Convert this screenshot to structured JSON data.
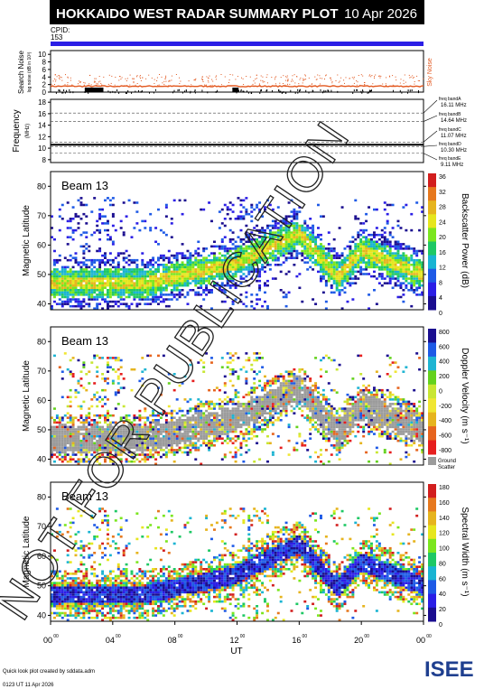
{
  "header": {
    "title": "HOKKAIDO WEST RADAR SUMMARY PLOT",
    "date": "10 Apr 2026"
  },
  "cpid": {
    "label": "CPID:",
    "value": "153"
  },
  "noise": {
    "ylabel": "Search Noise",
    "ylabel_sub": "log noise (dB in 10³)",
    "yticks": [
      "0",
      "2",
      "4",
      "6",
      "8",
      "10"
    ],
    "legend": "Sky Noise",
    "colors": {
      "sky": "#e2571e",
      "search": "#000000"
    }
  },
  "frequency": {
    "ylabel": "Frequency",
    "ylabel_sub": "(MHz)",
    "yticks": [
      "8",
      "10",
      "12",
      "14",
      "16",
      "18"
    ],
    "bands": [
      {
        "name": "freq bandA",
        "value": "16.11 MHz"
      },
      {
        "name": "freq bandB",
        "value": "14.64 MHz"
      },
      {
        "name": "freq bandC",
        "value": "11.07 MHz"
      },
      {
        "name": "freq bandD",
        "value": "10.30 MHz"
      },
      {
        "name": "freq bandE",
        "value": "9.11 MHz"
      }
    ]
  },
  "panels": [
    {
      "beam": "Beam 13",
      "ylabel": "Magnetic Latitude",
      "cbar_label": "Backscatter Power (dB)",
      "cbar_ticks": [
        "36",
        "32",
        "28",
        "24",
        "20",
        "16",
        "12",
        "8",
        "4",
        "0"
      ]
    },
    {
      "beam": "Beam 13",
      "ylabel": "Magnetic Latitude",
      "cbar_label": "Doppler Velocity (m s⁻¹)",
      "cbar_ticks": [
        "800",
        "600",
        "400",
        "200",
        "0",
        "-200",
        "-400",
        "-600",
        "-800"
      ],
      "ground_scatter": [
        "Ground",
        "Scatter"
      ]
    },
    {
      "beam": "Beam 13",
      "ylabel": "Magnetic Latitude",
      "cbar_label": "Spectral Width (m s⁻¹)",
      "cbar_ticks": [
        "180",
        "160",
        "140",
        "120",
        "100",
        "80",
        "60",
        "40",
        "20",
        "0"
      ]
    }
  ],
  "lat_ticks": [
    "40",
    "50",
    "60",
    "70",
    "80"
  ],
  "xaxis": {
    "label": "UT",
    "ticks": [
      "00",
      "04",
      "08",
      "12",
      "16",
      "20",
      "00"
    ],
    "tick_sup": "00"
  },
  "watermark": "NOT FOR PUBLICATION",
  "footer": {
    "line1": "Quick look plot created by sddata.adm",
    "line2": "0123 UT 11 Apr 2026",
    "logo": "ISEE"
  },
  "chart_data": {
    "type": "heatmap",
    "x_range_hours": [
      0,
      24
    ],
    "lat_range": [
      38,
      85
    ],
    "description_series": [
      {
        "name": "Backscatter Power",
        "range": [
          0,
          36
        ],
        "unit": "dB"
      },
      {
        "name": "Doppler Velocity",
        "range": [
          -800,
          800
        ],
        "unit": "m s-1"
      },
      {
        "name": "Spectral Width",
        "range": [
          0,
          180
        ],
        "unit": "m s-1"
      }
    ]
  }
}
